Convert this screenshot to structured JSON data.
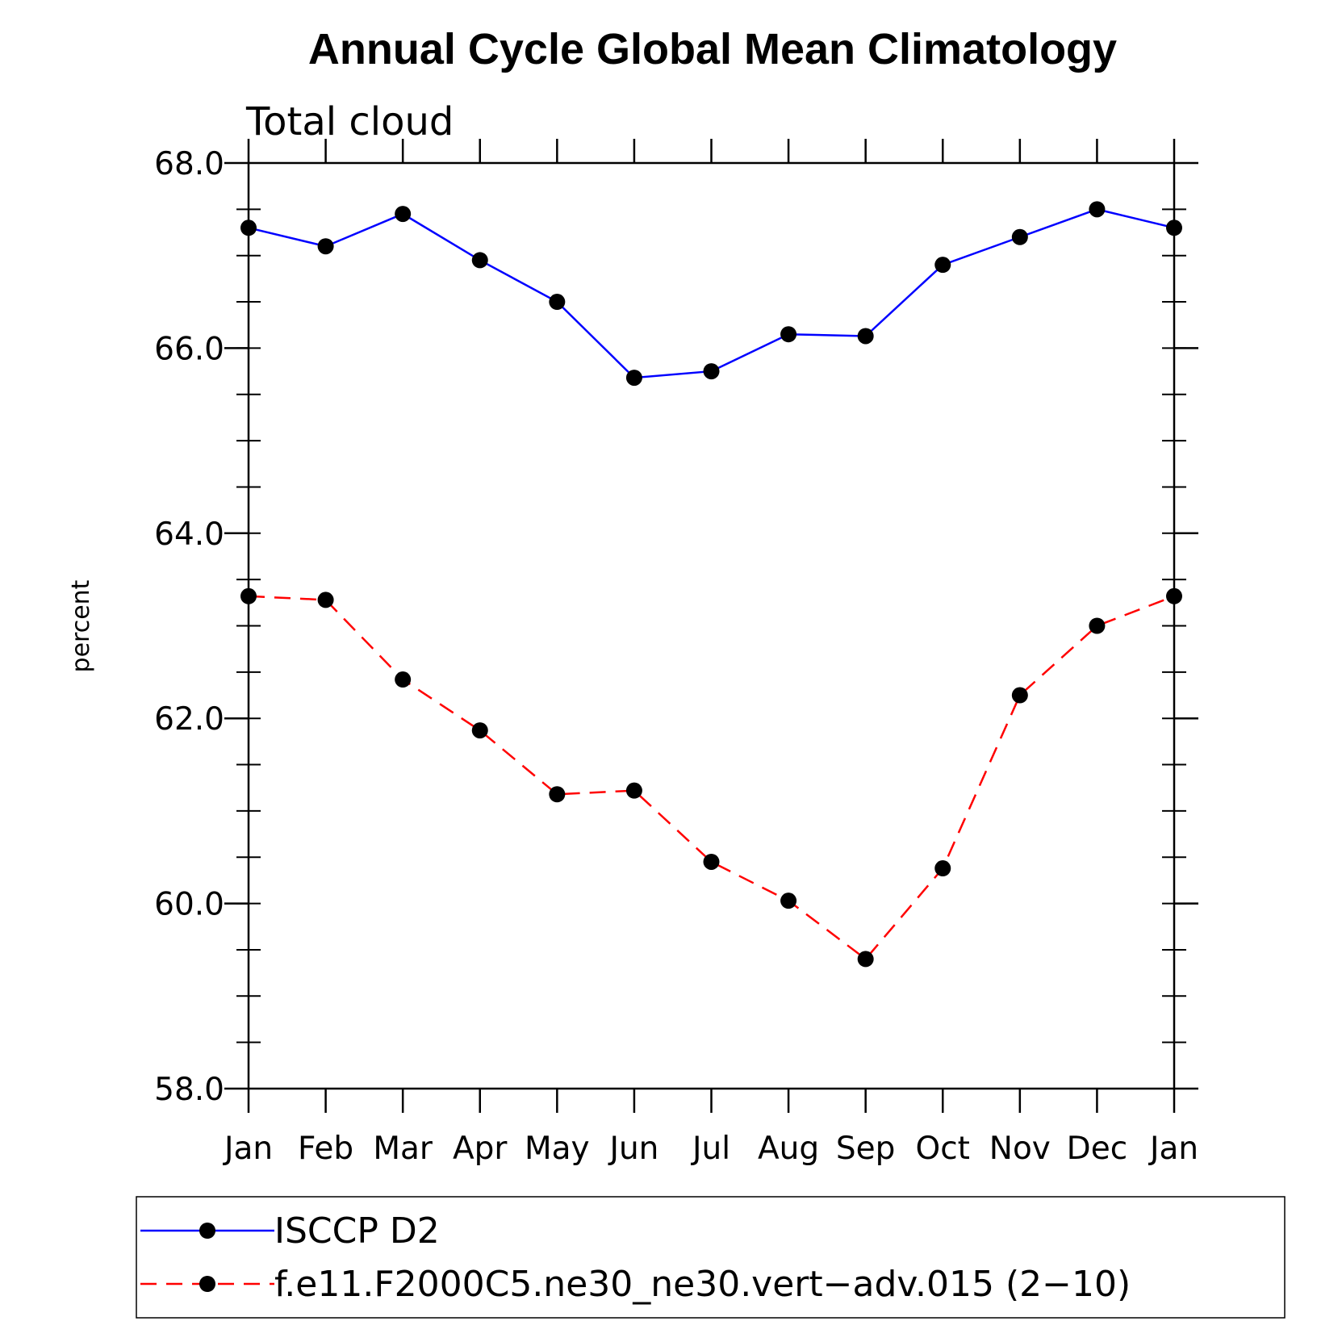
{
  "chart_data": {
    "type": "line",
    "title": "Annual Cycle Global Mean Climatology",
    "subtitle": "Total cloud",
    "xlabel": "",
    "ylabel": "percent",
    "categories": [
      "Jan",
      "Feb",
      "Mar",
      "Apr",
      "May",
      "Jun",
      "Jul",
      "Aug",
      "Sep",
      "Oct",
      "Nov",
      "Dec",
      "Jan"
    ],
    "ylim": [
      58.0,
      68.0
    ],
    "yticks": [
      "58.0",
      "60.0",
      "62.0",
      "64.0",
      "66.0",
      "68.0"
    ],
    "legend_position": "bottom",
    "series": [
      {
        "name": "ISCCP D2",
        "color": "#0000ff",
        "dash": "solid",
        "values": [
          67.3,
          67.1,
          67.45,
          66.95,
          66.5,
          65.68,
          65.75,
          66.15,
          66.13,
          66.9,
          67.2,
          67.5,
          67.3
        ]
      },
      {
        "name": "f.e11.F2000C5.ne30_ne30.vert−adv.015 (2−10)",
        "color": "#ff0000",
        "dash": "dashed",
        "values": [
          63.32,
          63.28,
          62.42,
          61.87,
          61.18,
          61.22,
          60.45,
          60.03,
          59.4,
          60.38,
          62.25,
          63.0,
          63.32
        ]
      }
    ]
  }
}
